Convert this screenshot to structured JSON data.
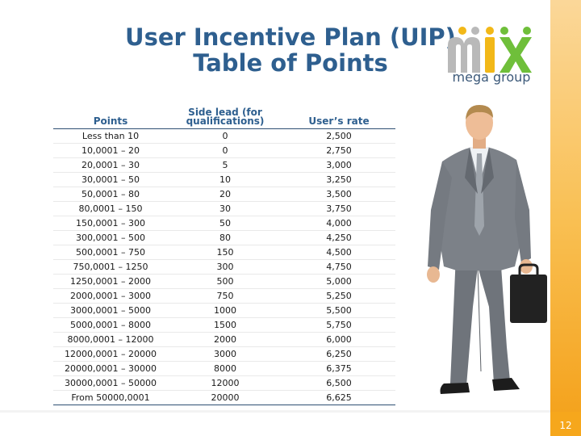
{
  "slide": {
    "title_line1": "User Incentive Plan (UIP)",
    "title_line2": "Table of Points",
    "number": "12"
  },
  "logo": {
    "word": "mix",
    "subtitle": "mega group"
  },
  "colors": {
    "title": "#2e5f8f",
    "accent_orange": "#f6a71c",
    "logo_gray": "#b9b9b9",
    "logo_yellow": "#f2b818",
    "logo_green": "#6fbf3a"
  },
  "table": {
    "headers": [
      "Points",
      "Side lead (for qualifications)",
      "User’s rate"
    ],
    "rows": [
      [
        "Less than 10",
        "0",
        "2,500"
      ],
      [
        "10,0001 – 20",
        "0",
        "2,750"
      ],
      [
        "20,0001 – 30",
        "5",
        "3,000"
      ],
      [
        "30,0001 – 50",
        "10",
        "3,250"
      ],
      [
        "50,0001 – 80",
        "20",
        "3,500"
      ],
      [
        "80,0001 – 150",
        "30",
        "3,750"
      ],
      [
        "150,0001 – 300",
        "50",
        "4,000"
      ],
      [
        "300,0001 – 500",
        "80",
        "4,250"
      ],
      [
        "500,0001 – 750",
        "150",
        "4,500"
      ],
      [
        "750,0001 – 1250",
        "300",
        "4,750"
      ],
      [
        "1250,0001 – 2000",
        "500",
        "5,000"
      ],
      [
        "2000,0001 – 3000",
        "750",
        "5,250"
      ],
      [
        "3000,0001 – 5000",
        "1000",
        "5,500"
      ],
      [
        "5000,0001 – 8000",
        "1500",
        "5,750"
      ],
      [
        "8000,0001 – 12000",
        "2000",
        "6,000"
      ],
      [
        "12000,0001 – 20000",
        "3000",
        "6,250"
      ],
      [
        "20000,0001 – 30000",
        "8000",
        "6,375"
      ],
      [
        "30000,0001 – 50000",
        "12000",
        "6,500"
      ],
      [
        "From 50000,0001",
        "20000",
        "6,625"
      ]
    ]
  }
}
